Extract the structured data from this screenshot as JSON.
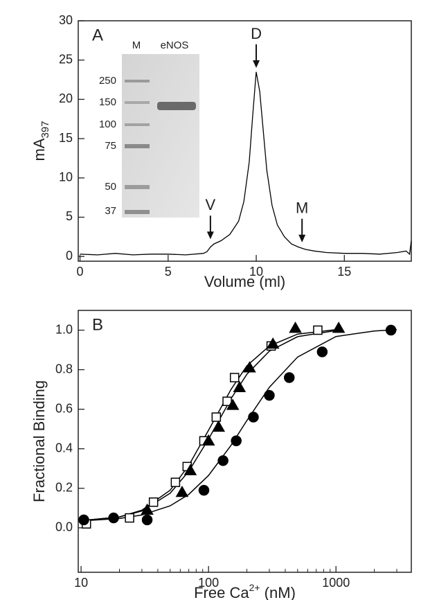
{
  "chart_data": [
    {
      "type": "line",
      "panel_label": "A",
      "x_label": "Volume (ml)",
      "y_label": {
        "text": "mA",
        "sub": "397"
      },
      "color": "#000000",
      "x": [
        0,
        1,
        2,
        3,
        4,
        5,
        6,
        7,
        7.2,
        7.4,
        7.6,
        8,
        8.5,
        9,
        9.3,
        9.6,
        9.8,
        10,
        10.2,
        10.4,
        10.6,
        10.9,
        11.2,
        11.6,
        12,
        12.4,
        12.8,
        13.3,
        14,
        15,
        16,
        17,
        18,
        18.5,
        18.7,
        18.8
      ],
      "values": [
        0.3,
        0.2,
        0.4,
        0.2,
        0.3,
        0.3,
        0.2,
        0.4,
        0.6,
        1.2,
        1.6,
        2,
        2.8,
        4.5,
        7,
        12,
        18,
        23.5,
        21,
        16,
        11,
        6.5,
        4,
        2.5,
        1.6,
        1.2,
        0.9,
        0.7,
        0.5,
        0.4,
        0.4,
        0.3,
        0.5,
        0.7,
        0.3,
        2
      ],
      "xlim": [
        -0.1,
        18.8
      ],
      "ylim": [
        -0.6,
        30
      ],
      "xticks": [
        0,
        5,
        10,
        15
      ],
      "yticks": [
        0,
        5,
        10,
        15,
        20,
        25,
        30
      ],
      "annotations": [
        {
          "text": "D",
          "x": 10,
          "y": 24
        },
        {
          "text": "V",
          "x": 7.4,
          "y": 2.2
        },
        {
          "text": "M",
          "x": 12.6,
          "y": 1.8
        }
      ],
      "inset": {
        "lanes": [
          "M",
          "eNOS"
        ],
        "markers": [
          250,
          150,
          100,
          75,
          50,
          37
        ]
      }
    },
    {
      "type": "scatter",
      "panel_label": "B",
      "y_label": "Fractional Binding",
      "x_label": {
        "text": "Free Ca",
        "sup": "2+",
        "suffix": " (nM)"
      },
      "log_x": true,
      "xlim": [
        9.5,
        3900
      ],
      "ylim": [
        -0.225,
        1.1
      ],
      "xticks": [
        10,
        100,
        1000
      ],
      "xminor": [
        20,
        30,
        40,
        50,
        60,
        70,
        80,
        90,
        200,
        300,
        400,
        500,
        600,
        700,
        800,
        900,
        2000,
        3000
      ],
      "yticks": [
        {
          "value": 0,
          "label": "0.0"
        },
        0.2,
        0.4,
        0.6,
        0.8,
        {
          "value": 1,
          "label": "1.0"
        }
      ],
      "series": [
        {
          "marker": "square",
          "filled": false,
          "color": "#000000",
          "x": [
            11,
            24,
            37,
            55,
            68,
            92,
            115,
            140,
            160,
            310,
            720
          ],
          "values": [
            0.02,
            0.05,
            0.13,
            0.23,
            0.31,
            0.44,
            0.56,
            0.64,
            0.76,
            0.92,
            1.0
          ],
          "fit": {
            "x": [
              10,
              20,
              30,
              50,
              70,
              100,
              150,
              200,
              300,
              500,
              1000
            ],
            "values": [
              0.036,
              0.055,
              0.089,
              0.19,
              0.315,
              0.494,
              0.7,
              0.82,
              0.92,
              0.98,
              1.003
            ]
          }
        },
        {
          "marker": "triangle",
          "filled": true,
          "color": "#000000",
          "x": [
            33,
            62,
            72,
            100,
            120,
            155,
            175,
            210,
            320,
            480,
            1050
          ],
          "values": [
            0.09,
            0.18,
            0.29,
            0.44,
            0.51,
            0.62,
            0.71,
            0.81,
            0.93,
            1.01,
            1.01
          ],
          "fit": {
            "x": [
              10,
              20,
              30,
              50,
              70,
              100,
              150,
              200,
              300,
              500,
              1050
            ],
            "values": [
              0.036,
              0.055,
              0.085,
              0.175,
              0.286,
              0.449,
              0.653,
              0.777,
              0.894,
              0.967,
              1.0
            ]
          }
        },
        {
          "marker": "circle",
          "filled": true,
          "color": "#000000",
          "x": [
            10.5,
            18,
            33,
            92,
            130,
            165,
            225,
            300,
            430,
            780,
            2700
          ],
          "values": [
            0.04,
            0.05,
            0.04,
            0.19,
            0.34,
            0.44,
            0.56,
            0.67,
            0.76,
            0.89,
            1.0
          ],
          "fit": {
            "x": [
              10,
              20,
              30,
              50,
              70,
              100,
              150,
              200,
              300,
              500,
              1000,
              2000,
              3000
            ],
            "values": [
              0.035,
              0.047,
              0.065,
              0.111,
              0.169,
              0.265,
              0.417,
              0.543,
              0.711,
              0.864,
              0.968,
              0.996,
              1.003
            ]
          }
        }
      ]
    }
  ]
}
